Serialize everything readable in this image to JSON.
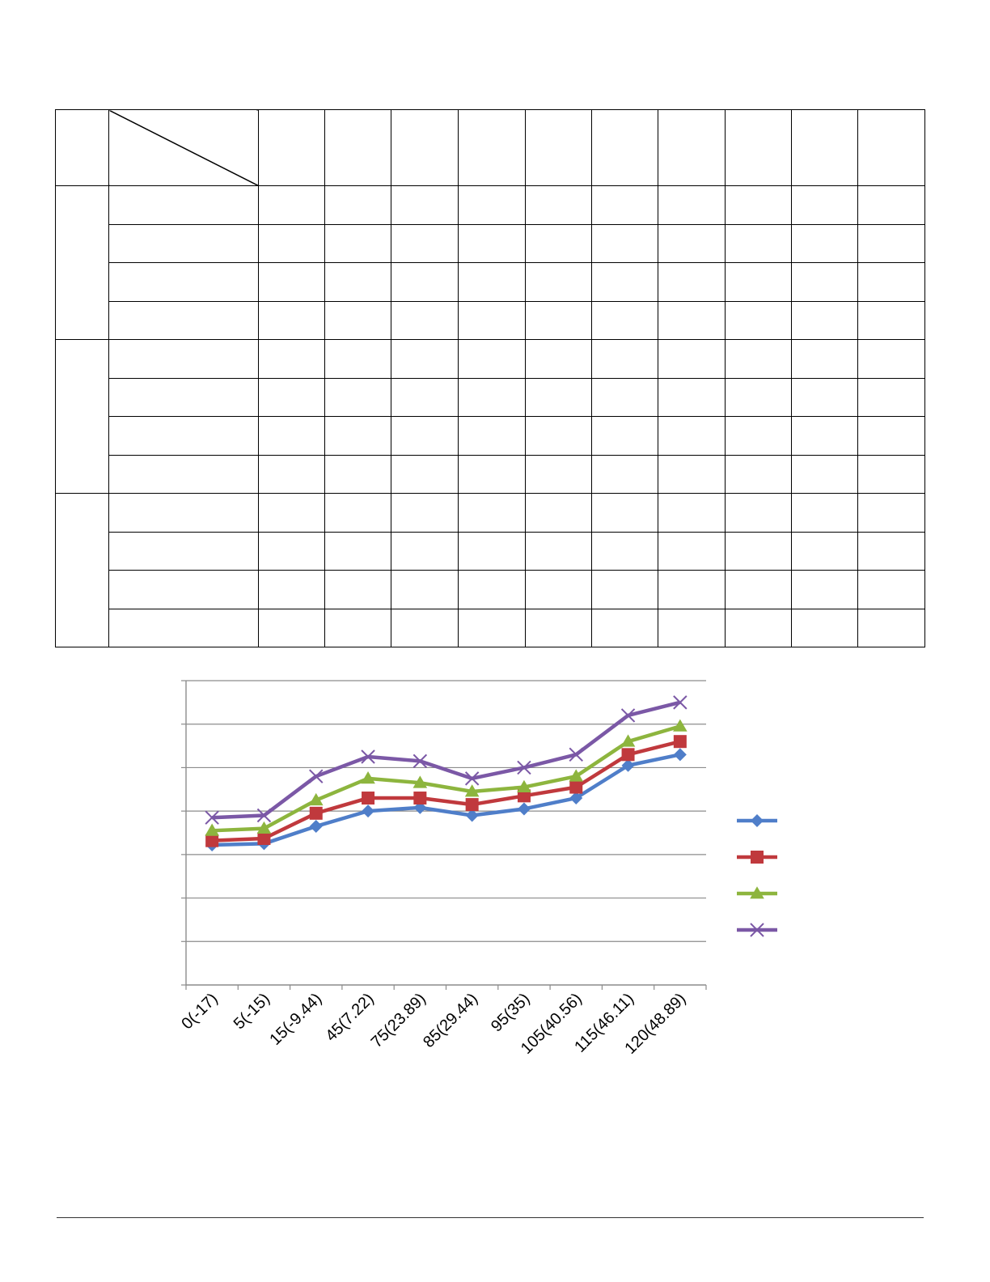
{
  "table": {
    "header_row_count": 1,
    "group_count": 3,
    "rows_per_group": 4,
    "value_column_count": 10
  },
  "chart_data": {
    "type": "line",
    "title": "",
    "xlabel": "",
    "ylabel": "",
    "categories": [
      "0(-17)",
      "5(-15)",
      "15(-9.44)",
      "45(7.22)",
      "75(23.89)",
      "85(29.44)",
      "95(35)",
      "105(40.56)",
      "115(46.11)",
      "120(48.89)"
    ],
    "ylim": [
      0,
      7
    ],
    "y_tick_step": 1,
    "grid": true,
    "legend_position": "right",
    "series": [
      {
        "color": "#4F7EC9",
        "marker": "diamond",
        "values": [
          3.22,
          3.25,
          3.65,
          4.0,
          4.08,
          3.9,
          4.05,
          4.3,
          5.05,
          5.3
        ]
      },
      {
        "color": "#C0393D",
        "marker": "square",
        "values": [
          3.32,
          3.37,
          3.95,
          4.3,
          4.3,
          4.15,
          4.35,
          4.55,
          5.3,
          5.6
        ]
      },
      {
        "color": "#8DB53E",
        "marker": "triangle",
        "values": [
          3.55,
          3.6,
          4.25,
          4.75,
          4.65,
          4.45,
          4.55,
          4.8,
          5.6,
          5.95
        ]
      },
      {
        "color": "#7B58A6",
        "marker": "x",
        "values": [
          3.85,
          3.9,
          4.8,
          5.25,
          5.15,
          4.75,
          5.0,
          5.3,
          6.2,
          6.5
        ]
      }
    ]
  }
}
